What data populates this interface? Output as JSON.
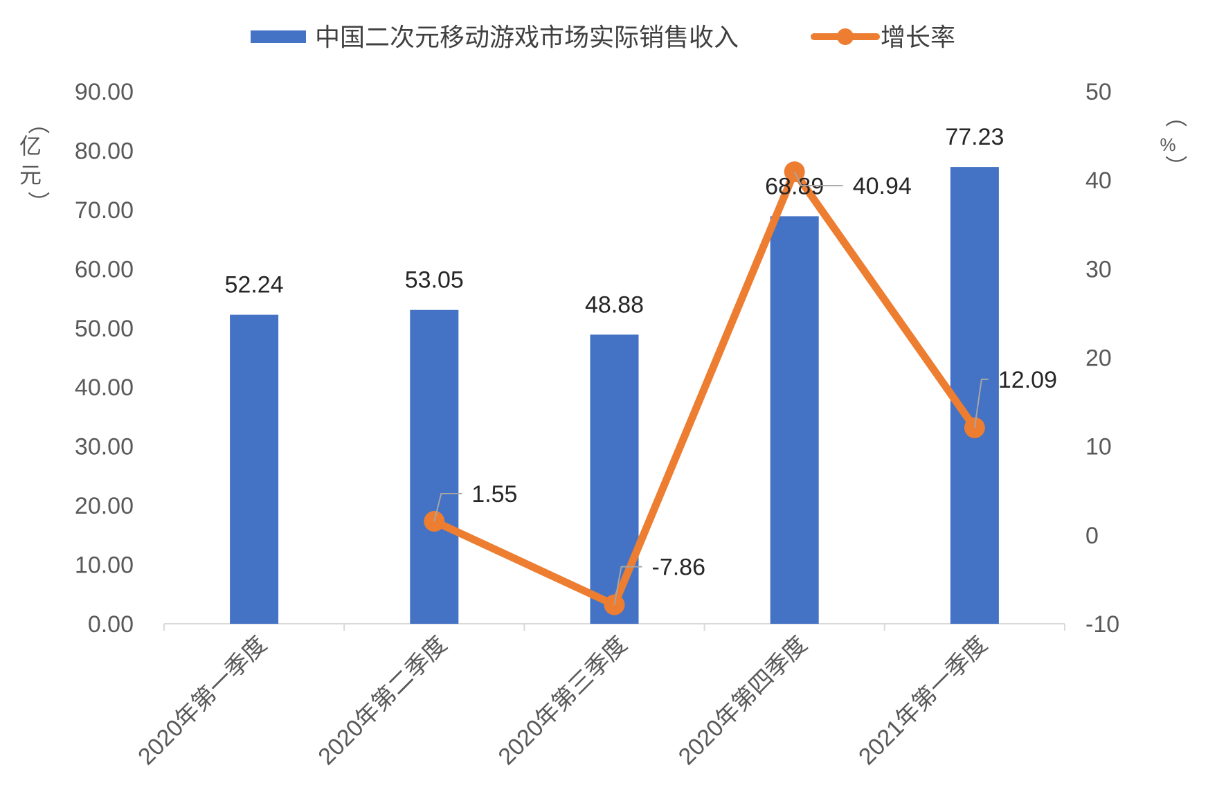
{
  "chart_data": {
    "type": "bar",
    "categories": [
      "2020年第一季度",
      "2020年第二季度",
      "2020年第三季度",
      "2020年第四季度",
      "2021年第一季度"
    ],
    "series": [
      {
        "name": "中国二次元移动游戏市场实际销售收入",
        "type": "bar",
        "axis": "left",
        "color": "#4472C4",
        "values": [
          52.24,
          53.05,
          48.88,
          68.89,
          77.23
        ],
        "labels": [
          "52.24",
          "53.05",
          "48.88",
          "68.89",
          "77.23"
        ]
      },
      {
        "name": "增长率",
        "type": "line",
        "axis": "right",
        "color": "#ED7D31",
        "values": [
          null,
          1.55,
          -7.86,
          40.94,
          12.09
        ],
        "labels": [
          "",
          "1.55",
          "-7.86",
          "40.94",
          "12.09"
        ]
      }
    ],
    "y_left": {
      "label_chars": [
        "（",
        "亿",
        "元",
        "）"
      ],
      "ylim": [
        0,
        90
      ],
      "ticks": [
        "0.00",
        "10.00",
        "20.00",
        "30.00",
        "40.00",
        "50.00",
        "60.00",
        "70.00",
        "80.00",
        "90.00"
      ]
    },
    "y_right": {
      "label_chars": [
        "（",
        "%",
        "）"
      ],
      "ylim": [
        -10,
        50
      ],
      "ticks": [
        "-10",
        "0",
        "10",
        "20",
        "30",
        "40",
        "50"
      ]
    },
    "legend_position": "top",
    "grid": false
  }
}
